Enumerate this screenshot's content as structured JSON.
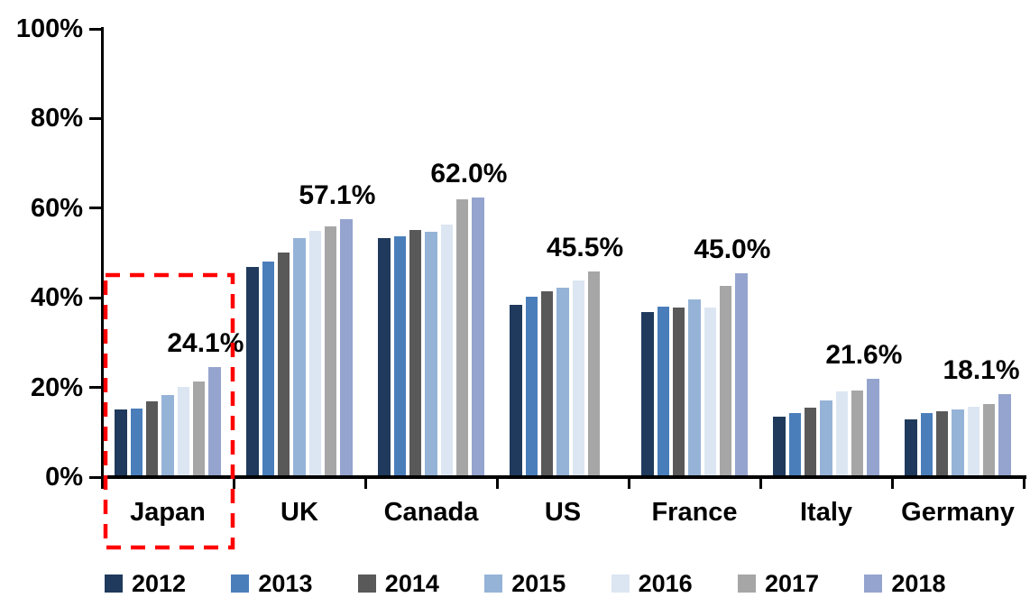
{
  "chart_data": {
    "type": "bar",
    "title": "",
    "xlabel": "",
    "ylabel": "",
    "categories": [
      "Japan",
      "UK",
      "Canada",
      "US",
      "France",
      "Italy",
      "Germany"
    ],
    "series": [
      {
        "name": "2012",
        "color": "#1F3A5C",
        "values": [
          14.6,
          46.4,
          52.9,
          38.0,
          36.4,
          13.1,
          12.4
        ]
      },
      {
        "name": "2013",
        "color": "#4A7EBB",
        "values": [
          14.9,
          47.7,
          53.3,
          39.8,
          37.6,
          13.9,
          13.9
        ]
      },
      {
        "name": "2014",
        "color": "#595959",
        "values": [
          16.4,
          49.7,
          54.7,
          41.0,
          37.5,
          15.1,
          14.3
        ]
      },
      {
        "name": "2015",
        "color": "#95B3D7",
        "values": [
          17.9,
          53.0,
          54.4,
          41.8,
          39.2,
          16.6,
          14.6
        ]
      },
      {
        "name": "2016",
        "color": "#DCE6F2",
        "values": [
          19.7,
          54.5,
          56.0,
          43.4,
          37.4,
          18.8,
          15.2
        ]
      },
      {
        "name": "2017",
        "color": "#A6A6A6",
        "values": [
          20.9,
          55.6,
          61.5,
          45.5,
          42.2,
          18.9,
          15.8
        ]
      },
      {
        "name": "2018",
        "color": "#95A4CE",
        "values": [
          24.1,
          57.1,
          62.0,
          null,
          45.0,
          21.6,
          18.1
        ]
      }
    ],
    "value_labels": [
      "24.1%",
      "57.1%",
      "62.0%",
      "45.5%",
      "45.0%",
      "21.6%",
      "18.1%"
    ],
    "ylim": [
      0,
      100
    ],
    "ytick_values": [
      0,
      20,
      40,
      60,
      80,
      100
    ],
    "ytick_labels": [
      "0%",
      "20%",
      "40%",
      "60%",
      "80%",
      "100%"
    ],
    "grid": "off",
    "legend_position": "bottom",
    "annotation": {
      "type": "highlight-box",
      "target_category": "Japan",
      "style": "dashed",
      "color": "#FF0000"
    }
  },
  "colors": {
    "background": "#FFFFFF",
    "axis": "#000000",
    "text": "#000000",
    "highlight": "#FF0000"
  }
}
